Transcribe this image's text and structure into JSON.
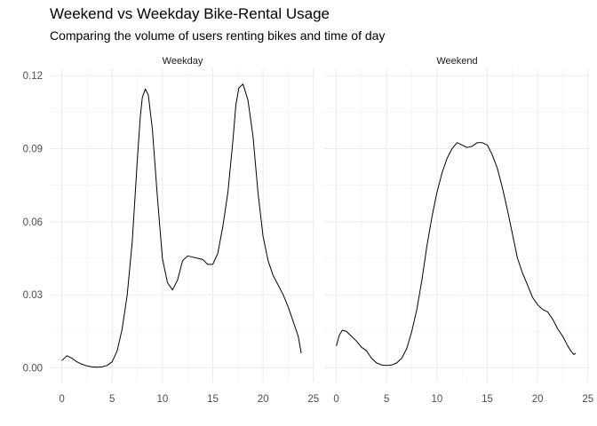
{
  "chart_data": {
    "type": "line",
    "title": "Weekend vs Weekday Bike-Rental Usage",
    "subtitle": "Comparing the volume of users renting bikes and time of day",
    "xlabel": "",
    "ylabel": "",
    "xlim": [
      -1.2,
      25.2
    ],
    "ylim": [
      -0.006,
      0.123
    ],
    "x_ticks": [
      "0",
      "5",
      "10",
      "15",
      "20",
      "25"
    ],
    "y_ticks": [
      "0.00",
      "0.03",
      "0.06",
      "0.09",
      "0.12"
    ],
    "grid": true,
    "line_color": "#000000",
    "panels": [
      {
        "name": "Weekday",
        "x": [
          0,
          0.5,
          1,
          1.5,
          2,
          2.5,
          3,
          3.5,
          4,
          4.5,
          5,
          5.5,
          6,
          6.5,
          7,
          7.5,
          7.8,
          8,
          8.3,
          8.6,
          9,
          9.5,
          10,
          10.5,
          11,
          11.5,
          12,
          12.5,
          13,
          13.5,
          14,
          14.5,
          15,
          15.5,
          16,
          16.5,
          17,
          17.3,
          17.6,
          18,
          18.5,
          19,
          19.5,
          20,
          20.5,
          21,
          21.5,
          22,
          22.5,
          23,
          23.5,
          23.8
        ],
        "y": [
          0.003,
          0.005,
          0.004,
          0.0025,
          0.0015,
          0.0008,
          0.0004,
          0.0003,
          0.0004,
          0.001,
          0.0025,
          0.007,
          0.016,
          0.03,
          0.052,
          0.085,
          0.103,
          0.111,
          0.1145,
          0.112,
          0.098,
          0.07,
          0.045,
          0.035,
          0.032,
          0.036,
          0.044,
          0.046,
          0.0455,
          0.045,
          0.0445,
          0.0425,
          0.0425,
          0.047,
          0.058,
          0.072,
          0.093,
          0.108,
          0.115,
          0.1165,
          0.11,
          0.095,
          0.072,
          0.054,
          0.044,
          0.038,
          0.034,
          0.03,
          0.025,
          0.019,
          0.013,
          0.006
        ]
      },
      {
        "name": "Weekend",
        "x": [
          0,
          0.3,
          0.6,
          1,
          1.5,
          2,
          2.5,
          3,
          3.5,
          4,
          4.5,
          5,
          5.5,
          6,
          6.5,
          7,
          7.5,
          8,
          8.5,
          9,
          9.5,
          10,
          10.5,
          11,
          11.5,
          12,
          12.5,
          13,
          13.5,
          14,
          14.5,
          15,
          15.5,
          16,
          16.5,
          17,
          17.5,
          18,
          18.5,
          19,
          19.5,
          20,
          20.5,
          21,
          21.5,
          22,
          22.5,
          23,
          23.3,
          23.6,
          23.8
        ],
        "y": [
          0.009,
          0.0135,
          0.0155,
          0.015,
          0.013,
          0.011,
          0.0085,
          0.007,
          0.004,
          0.002,
          0.0012,
          0.001,
          0.0012,
          0.002,
          0.004,
          0.008,
          0.015,
          0.024,
          0.036,
          0.05,
          0.062,
          0.072,
          0.08,
          0.086,
          0.09,
          0.0925,
          0.0915,
          0.0905,
          0.091,
          0.0925,
          0.0925,
          0.0915,
          0.0875,
          0.082,
          0.074,
          0.065,
          0.055,
          0.045,
          0.039,
          0.034,
          0.029,
          0.026,
          0.024,
          0.023,
          0.02,
          0.016,
          0.013,
          0.009,
          0.007,
          0.0055,
          0.006
        ]
      }
    ]
  }
}
